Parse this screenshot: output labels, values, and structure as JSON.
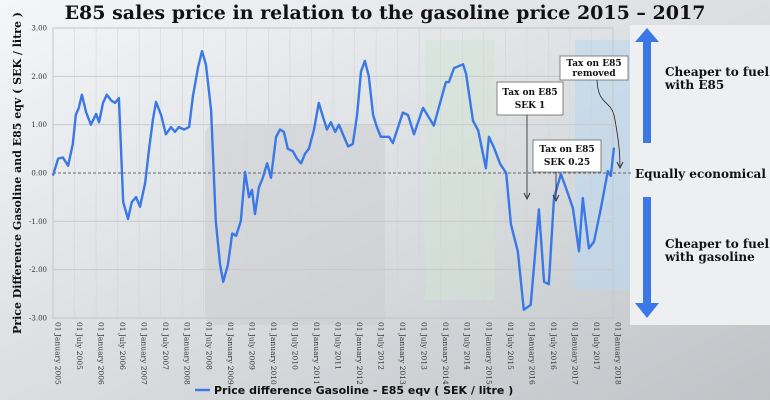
{
  "chart_data": {
    "type": "line",
    "title": "E85 sales price in relation to the gasoline price 2015 – 2017",
    "xlabel": "",
    "ylabel": "Price Difference Gasoline and E85 eqv ( SEK / litre )",
    "ylim": [
      -3,
      3
    ],
    "xlim": [
      2005,
      2018
    ],
    "yticks": [
      "3.00",
      "2.00",
      "1.00",
      "0.00",
      "-1.00",
      "-2.00",
      "-3.00"
    ],
    "xticks": [
      "01 January 2005",
      "01 July 2005",
      "01 January 2006",
      "01 July 2006",
      "01 January 2007",
      "01 July 2007",
      "01 January 2008",
      "01 July 2008",
      "01 January 2009",
      "01 July 2009",
      "01 January 2010",
      "01 July 2010",
      "01 January 2011",
      "01 July 2011",
      "01 January 2012",
      "01 July 2012",
      "01 January 2013",
      "01 July 2013",
      "01 January 2014",
      "01 July 2014",
      "01 January 2015",
      "01 July 2015",
      "01 January 2016",
      "01 July 2016",
      "01 January 2017",
      "01 July 2017",
      "01 January 2018"
    ],
    "grid": true,
    "legend": {
      "position": "bottom",
      "entries": [
        "Price difference Gasoline - E85 eqv ( SEK / litre )"
      ]
    },
    "series": [
      {
        "name": "Price difference Gasoline - E85 eqv ( SEK / litre )",
        "color": "#3b78e7",
        "x": [
          2005.0,
          2005.12,
          2005.23,
          2005.35,
          2005.46,
          2005.53,
          2005.6,
          2005.67,
          2005.77,
          2005.88,
          2006.0,
          2006.07,
          2006.16,
          2006.25,
          2006.35,
          2006.44,
          2006.53,
          2006.63,
          2006.74,
          2006.83,
          2006.93,
          2007.02,
          2007.14,
          2007.23,
          2007.32,
          2007.39,
          2007.51,
          2007.62,
          2007.74,
          2007.83,
          2007.92,
          2008.04,
          2008.16,
          2008.25,
          2008.37,
          2008.46,
          2008.55,
          2008.67,
          2008.78,
          2008.88,
          2008.95,
          2009.06,
          2009.16,
          2009.25,
          2009.36,
          2009.46,
          2009.55,
          2009.62,
          2009.69,
          2009.78,
          2009.87,
          2009.97,
          2010.06,
          2010.18,
          2010.27,
          2010.36,
          2010.45,
          2010.57,
          2010.66,
          2010.76,
          2010.85,
          2010.94,
          2011.06,
          2011.17,
          2011.27,
          2011.36,
          2011.45,
          2011.55,
          2011.64,
          2011.73,
          2011.85,
          2011.96,
          2012.06,
          2012.15,
          2012.24,
          2012.33,
          2012.43,
          2012.52,
          2012.61,
          2012.71,
          2012.8,
          2012.89,
          2013.12,
          2013.24,
          2013.38,
          2013.59,
          2013.84,
          2014.12,
          2014.19,
          2014.31,
          2014.52,
          2014.59,
          2014.75,
          2014.87,
          2015.05,
          2015.12,
          2015.24,
          2015.38,
          2015.52,
          2015.63,
          2015.79,
          2015.93,
          2016.09,
          2016.28,
          2016.4,
          2016.51,
          2016.63,
          2016.79,
          2016.96,
          2017.07,
          2017.21,
          2017.3,
          2017.44,
          2017.56,
          2017.72,
          2017.88,
          2017.95,
          2018.02
        ],
        "values": [
          -0.05,
          0.3,
          0.32,
          0.15,
          0.6,
          1.2,
          1.35,
          1.62,
          1.25,
          1.0,
          1.22,
          1.05,
          1.45,
          1.62,
          1.5,
          1.45,
          1.55,
          -0.6,
          -0.95,
          -0.6,
          -0.5,
          -0.7,
          -0.2,
          0.5,
          1.1,
          1.47,
          1.2,
          0.8,
          0.95,
          0.85,
          0.95,
          0.9,
          0.95,
          1.6,
          2.2,
          2.52,
          2.25,
          1.3,
          -1.0,
          -1.9,
          -2.25,
          -1.9,
          -1.25,
          -1.3,
          -1.0,
          0.02,
          -0.5,
          -0.35,
          -0.85,
          -0.3,
          -0.1,
          0.2,
          -0.1,
          0.75,
          0.9,
          0.85,
          0.5,
          0.45,
          0.3,
          0.2,
          0.4,
          0.5,
          0.9,
          1.45,
          1.15,
          0.9,
          1.05,
          0.85,
          1.0,
          0.8,
          0.55,
          0.6,
          1.2,
          2.1,
          2.32,
          2.0,
          1.2,
          0.95,
          0.75,
          0.75,
          0.75,
          0.62,
          1.25,
          1.2,
          0.8,
          1.35,
          0.98,
          1.88,
          1.88,
          2.17,
          2.25,
          2.05,
          1.08,
          0.88,
          0.1,
          0.75,
          0.52,
          0.19,
          0.0,
          -1.06,
          -1.62,
          -2.83,
          -2.73,
          -0.75,
          -2.25,
          -2.3,
          -0.52,
          -0.02,
          -0.44,
          -0.73,
          -1.62,
          -0.52,
          -1.56,
          -1.42,
          -0.73,
          0.04,
          -0.06,
          0.52
        ]
      }
    ],
    "annotations": [
      {
        "text": [
          "Tax on E85",
          "SEK 1"
        ],
        "x": 2016.0,
        "y": -0.55
      },
      {
        "text": [
          "Tax on E85",
          "SEK 0.25"
        ],
        "x": 2016.6,
        "y": -0.45
      },
      {
        "text": [
          "Tax on E85",
          "removed"
        ],
        "x": 2018.08,
        "y": 0.1
      }
    ],
    "reference_line": {
      "y": 0,
      "label": "Equally economical"
    },
    "side_labels": {
      "up": [
        "Cheaper to fuel",
        "with E85"
      ],
      "down": [
        "Cheaper to fuel",
        "with gasoline"
      ]
    },
    "accent_color": "#3b78e7"
  }
}
